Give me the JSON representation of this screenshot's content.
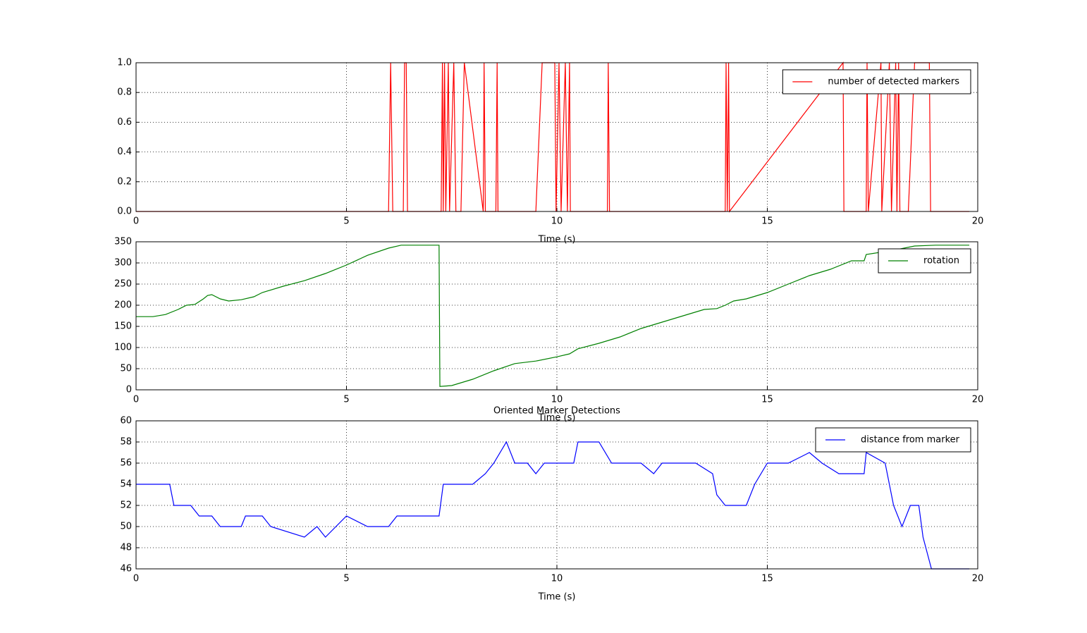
{
  "chart_data": [
    {
      "type": "line",
      "xlabel": "Time (s)",
      "xlim": [
        0,
        20
      ],
      "ylim": [
        0,
        1
      ],
      "grid": true,
      "legend": "upper right",
      "xticks": [
        0,
        5,
        10,
        15,
        20
      ],
      "yticks": [
        {
          "value": 0,
          "label": "0.0"
        },
        0.2,
        0.4,
        0.6,
        0.8,
        {
          "value": 1,
          "label": "1.0"
        }
      ],
      "x": [
        0,
        6.0,
        6.05,
        6.1,
        6.35,
        6.38,
        6.42,
        6.45,
        7.25,
        7.28,
        7.3,
        7.33,
        7.36,
        7.42,
        7.45,
        7.55,
        7.6,
        7.72,
        7.8,
        8.25,
        8.27,
        8.3,
        8.55,
        8.58,
        8.6,
        9.5,
        9.65,
        9.95,
        9.98,
        10.05,
        10.1,
        10.2,
        10.25,
        10.3,
        10.32,
        11.2,
        11.22,
        11.25,
        14.0,
        14.02,
        14.05,
        14.08,
        14.1,
        16.8,
        16.82,
        17.35,
        17.37,
        17.4,
        17.7,
        17.72,
        17.9,
        17.95,
        18.05,
        18.08,
        18.12,
        18.15,
        18.35,
        18.5,
        18.85,
        18.88,
        19.8
      ],
      "series": [
        {
          "name": "number of detected markers",
          "color": "#ff0000",
          "values": [
            0,
            0,
            1,
            0,
            0,
            1,
            1,
            0,
            0,
            1,
            0,
            1,
            0,
            1,
            0,
            1,
            0,
            0,
            1,
            0,
            1,
            0,
            0,
            1,
            0,
            0,
            1,
            1,
            0,
            1,
            0,
            1,
            0,
            1,
            0,
            0,
            1,
            0,
            0,
            1,
            0,
            1,
            0,
            1,
            0,
            0,
            1,
            0,
            1,
            0,
            1,
            0,
            1,
            0,
            1,
            0,
            0,
            1,
            1,
            0,
            0
          ]
        }
      ]
    },
    {
      "type": "line",
      "xlabel": "Time (s)",
      "xlim": [
        0,
        20
      ],
      "ylim": [
        0,
        350
      ],
      "grid": true,
      "legend": "upper right",
      "xticks": [
        0,
        5,
        10,
        15,
        20
      ],
      "yticks": [
        0,
        50,
        100,
        150,
        200,
        250,
        300,
        350
      ],
      "x": [
        0,
        0.4,
        0.7,
        1.0,
        1.2,
        1.4,
        1.6,
        1.7,
        1.8,
        2.0,
        2.2,
        2.5,
        2.8,
        3.0,
        3.5,
        4.0,
        4.5,
        5.0,
        5.5,
        6.0,
        6.3,
        7.2,
        7.22,
        7.5,
        8.0,
        8.5,
        9.0,
        9.5,
        10.0,
        10.3,
        10.5,
        11.0,
        11.5,
        12.0,
        12.5,
        13.0,
        13.5,
        13.8,
        14.0,
        14.2,
        14.5,
        15.0,
        15.5,
        16.0,
        16.5,
        17.0,
        17.3,
        17.35,
        18.0,
        18.5,
        19.0,
        19.8
      ],
      "series": [
        {
          "name": "rotation",
          "color": "#008000",
          "values": [
            173,
            173,
            178,
            190,
            200,
            202,
            215,
            223,
            225,
            215,
            210,
            213,
            220,
            230,
            245,
            258,
            275,
            295,
            318,
            335,
            342,
            342,
            8,
            10,
            25,
            45,
            62,
            68,
            78,
            85,
            97,
            110,
            125,
            145,
            160,
            175,
            190,
            192,
            200,
            210,
            215,
            230,
            250,
            270,
            285,
            305,
            305,
            320,
            330,
            340,
            342,
            342
          ]
        }
      ]
    },
    {
      "type": "line",
      "title": "Oriented Marker Detections",
      "xlabel": "Time (s)",
      "xlim": [
        0,
        20
      ],
      "ylim": [
        46,
        60
      ],
      "grid": true,
      "legend": "upper right",
      "xticks": [
        0,
        5,
        10,
        15,
        20
      ],
      "yticks": [
        46,
        48,
        50,
        52,
        54,
        56,
        58,
        60
      ],
      "x": [
        0,
        0.8,
        0.9,
        1.3,
        1.5,
        1.8,
        2.0,
        2.5,
        2.6,
        3.0,
        3.2,
        4.0,
        4.3,
        4.5,
        5.0,
        5.5,
        6.0,
        6.2,
        7.2,
        7.3,
        8.0,
        8.3,
        8.5,
        8.8,
        9.0,
        9.3,
        9.5,
        9.7,
        10.4,
        10.5,
        11.0,
        11.3,
        11.5,
        12.0,
        12.3,
        12.5,
        13.0,
        13.3,
        13.7,
        13.8,
        14.0,
        14.5,
        14.7,
        15.0,
        15.5,
        16.0,
        16.3,
        16.7,
        17.3,
        17.35,
        17.8,
        18.0,
        18.2,
        18.4,
        18.6,
        18.7,
        18.9,
        19.8
      ],
      "series": [
        {
          "name": "distance from marker",
          "color": "#0000ff",
          "values": [
            54,
            54,
            52,
            52,
            51,
            51,
            50,
            50,
            51,
            51,
            50,
            49,
            50,
            49,
            51,
            50,
            50,
            51,
            51,
            54,
            54,
            55,
            56,
            58,
            56,
            56,
            55,
            56,
            56,
            58,
            58,
            56,
            56,
            56,
            55,
            56,
            56,
            56,
            55,
            53,
            52,
            52,
            54,
            56,
            56,
            57,
            56,
            55,
            55,
            57,
            56,
            52,
            50,
            52,
            52,
            49,
            46,
            46
          ]
        }
      ]
    }
  ]
}
